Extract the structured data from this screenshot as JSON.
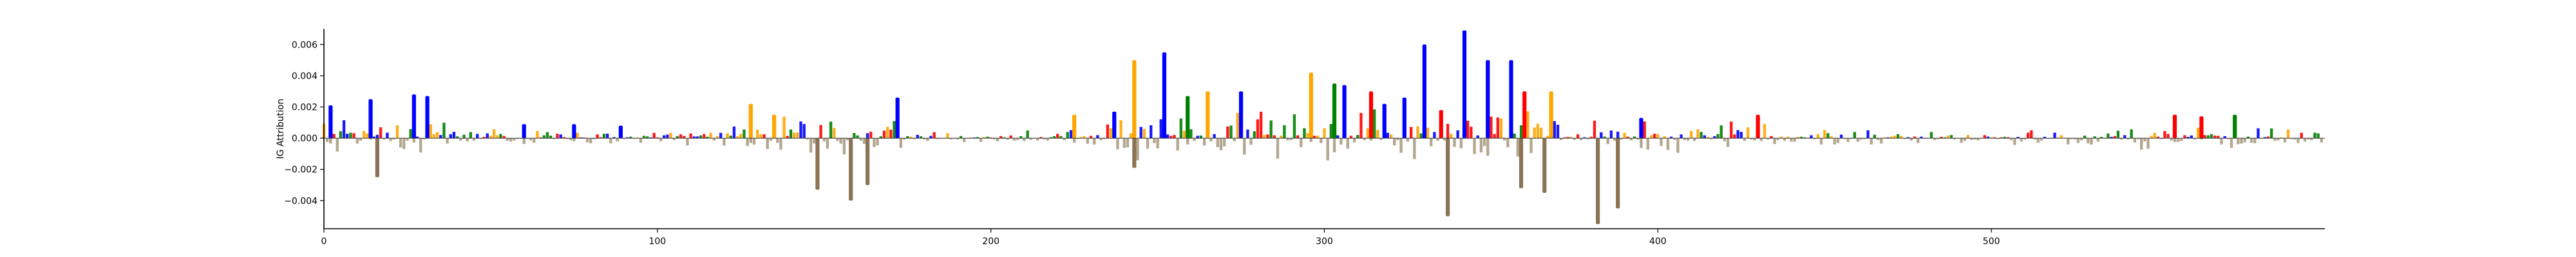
{
  "chart_data": {
    "type": "bar",
    "xlabel": "",
    "ylabel": "IG Attribution",
    "xlim": [
      0,
      600
    ],
    "ylim": [
      -0.0058,
      0.007
    ],
    "xticks": [
      0,
      100,
      200,
      300,
      400,
      500
    ],
    "xtick_labels": [
      "0",
      "100",
      "200",
      "300",
      "400",
      "500"
    ],
    "yticks": [
      -0.004,
      -0.002,
      0.0,
      0.002,
      0.004,
      0.006
    ],
    "ytick_labels": [
      "−0.004",
      "−0.002",
      "0.000",
      "0.002",
      "0.004",
      "0.006"
    ],
    "grid": false,
    "legend": "none",
    "mark_style": "sequence logo (per-position letters scaled by attribution)",
    "base_colors": {
      "A": "#008000",
      "C": "#0000ff",
      "G": "#ffa500",
      "T": "#ff0000"
    },
    "highlights": [
      {
        "position": 2,
        "base": "C",
        "value": 0.0021
      },
      {
        "position": 14,
        "base": "C",
        "value": 0.0025
      },
      {
        "position": 27,
        "base": "C",
        "value": 0.0028
      },
      {
        "position": 31,
        "base": "C",
        "value": 0.0027
      },
      {
        "position": 16,
        "base": "C",
        "value": -0.0025
      },
      {
        "position": 60,
        "base": "C",
        "value": 0.0009
      },
      {
        "position": 75,
        "base": "C",
        "value": 0.0009
      },
      {
        "position": 89,
        "base": "C",
        "value": 0.0008
      },
      {
        "position": 128,
        "base": "G",
        "value": 0.0022
      },
      {
        "position": 135,
        "base": "G",
        "value": 0.0015
      },
      {
        "position": 148,
        "base": "C",
        "value": -0.0033
      },
      {
        "position": 158,
        "base": "G",
        "value": -0.004
      },
      {
        "position": 163,
        "base": "T",
        "value": -0.003
      },
      {
        "position": 172,
        "base": "C",
        "value": 0.0026
      },
      {
        "position": 225,
        "base": "G",
        "value": 0.0015
      },
      {
        "position": 237,
        "base": "C",
        "value": 0.0017
      },
      {
        "position": 243,
        "base": "G",
        "value": 0.005
      },
      {
        "position": 252,
        "base": "C",
        "value": 0.0055
      },
      {
        "position": 243,
        "base": "G",
        "value": -0.0019
      },
      {
        "position": 259,
        "base": "A",
        "value": 0.0027
      },
      {
        "position": 265,
        "base": "G",
        "value": 0.003
      },
      {
        "position": 275,
        "base": "C",
        "value": 0.003
      },
      {
        "position": 296,
        "base": "G",
        "value": 0.0042
      },
      {
        "position": 303,
        "base": "A",
        "value": 0.0035
      },
      {
        "position": 306,
        "base": "C",
        "value": 0.0034
      },
      {
        "position": 314,
        "base": "T",
        "value": 0.003
      },
      {
        "position": 318,
        "base": "C",
        "value": 0.0022
      },
      {
        "position": 324,
        "base": "C",
        "value": 0.0026
      },
      {
        "position": 330,
        "base": "C",
        "value": 0.006
      },
      {
        "position": 335,
        "base": "T",
        "value": 0.0018
      },
      {
        "position": 342,
        "base": "C",
        "value": 0.0069
      },
      {
        "position": 349,
        "base": "C",
        "value": 0.005
      },
      {
        "position": 356,
        "base": "C",
        "value": 0.005
      },
      {
        "position": 360,
        "base": "T",
        "value": 0.003
      },
      {
        "position": 368,
        "base": "G",
        "value": 0.003
      },
      {
        "position": 337,
        "base": "G",
        "value": -0.005
      },
      {
        "position": 359,
        "base": "C",
        "value": -0.0032
      },
      {
        "position": 366,
        "base": "G",
        "value": -0.0035
      },
      {
        "position": 382,
        "base": "G",
        "value": -0.0055
      },
      {
        "position": 388,
        "base": "G",
        "value": -0.0045
      },
      {
        "position": 395,
        "base": "C",
        "value": 0.0013
      },
      {
        "position": 430,
        "base": "T",
        "value": 0.0015
      },
      {
        "position": 555,
        "base": "T",
        "value": 0.0015
      },
      {
        "position": 563,
        "base": "T",
        "value": 0.0014
      },
      {
        "position": 573,
        "base": "A",
        "value": 0.0015
      }
    ]
  }
}
